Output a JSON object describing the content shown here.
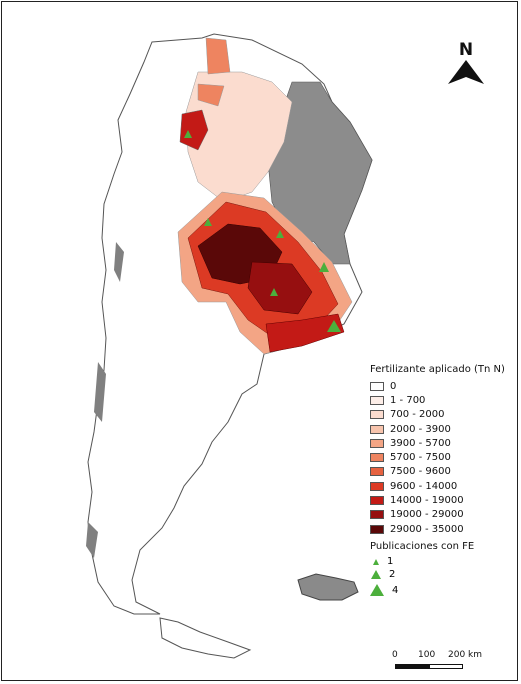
{
  "map": {
    "region": "Argentina",
    "base_color": "#ffffff",
    "border_color": "#555555",
    "no_data_color": "#808080",
    "publication_color": "#4caf3c"
  },
  "legend": {
    "title": "Fertilizante aplicado (Tn N)",
    "classes": [
      {
        "label": "0",
        "color": "#ffffff"
      },
      {
        "label": "1 - 700",
        "color": "#fdeee8"
      },
      {
        "label": "700 - 2000",
        "color": "#fbdccf"
      },
      {
        "label": "2000 - 3900",
        "color": "#f7c4ad"
      },
      {
        "label": "3900 - 5700",
        "color": "#f3a585"
      },
      {
        "label": "5700 - 7500",
        "color": "#ee8460"
      },
      {
        "label": "7500 - 9600",
        "color": "#e66240"
      },
      {
        "label": "9600 - 14000",
        "color": "#dc3a24"
      },
      {
        "label": "14000 - 19000",
        "color": "#c31a16"
      },
      {
        "label": "19000 - 29000",
        "color": "#960f10"
      },
      {
        "label": "29000 - 35000",
        "color": "#5a0808"
      }
    ]
  },
  "publications": {
    "title": "Publicaciones con FE",
    "classes": [
      {
        "label": "1",
        "size": "small"
      },
      {
        "label": "2",
        "size": "medium"
      },
      {
        "label": "4",
        "size": "large"
      }
    ]
  },
  "north_arrow": {
    "label": "N"
  },
  "scale_bar": {
    "labels": [
      "0",
      "100",
      "200 km"
    ]
  }
}
